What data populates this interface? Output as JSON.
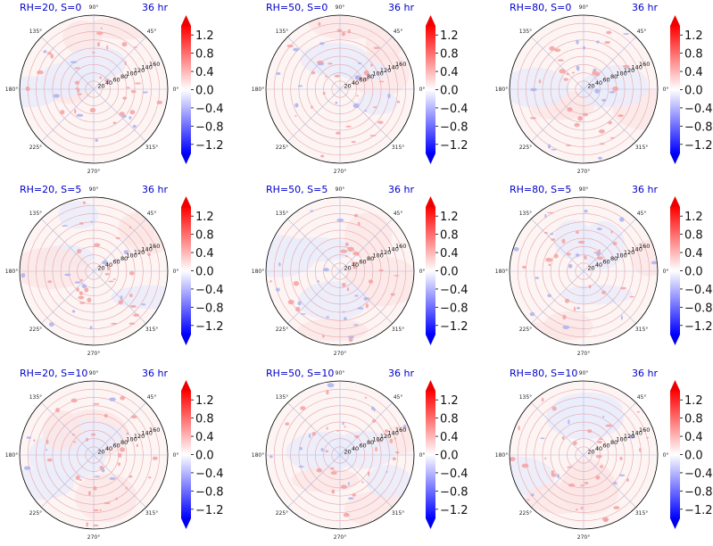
{
  "colors": {
    "title": "#0000cc",
    "negative": "#0000ff",
    "positive": "#ff0000",
    "neutral": "#ffffff",
    "circle": "#e8a6a6",
    "spoke": "#b8b8d8"
  },
  "chart_data": {
    "type": "polar-contour-grid",
    "colormap": "bwr",
    "angular_ticks": [
      "0°",
      "45°",
      "90°",
      "135°",
      "180°",
      "225°",
      "270°",
      "315°"
    ],
    "radial_ticks": [
      "20",
      "40",
      "60",
      "80",
      "100",
      "120",
      "140",
      "160"
    ],
    "radial_max": 180,
    "colorbar": {
      "ticks": [
        "1.2",
        "0.8",
        "0.4",
        "0.0",
        "−0.4",
        "−0.8",
        "−1.2"
      ],
      "vmin": -1.4,
      "vmax": 1.4,
      "extend": "both"
    },
    "panels": [
      {
        "title": "RH=20, S=0",
        "time_label": "36 hr"
      },
      {
        "title": "RH=50, S=0",
        "time_label": "36 hr"
      },
      {
        "title": "RH=80, S=0",
        "time_label": "36 hr"
      },
      {
        "title": "RH=20, S=5",
        "time_label": "36 hr"
      },
      {
        "title": "RH=50, S=5",
        "time_label": "36 hr"
      },
      {
        "title": "RH=80, S=5",
        "time_label": "36 hr"
      },
      {
        "title": "RH=20, S=10",
        "time_label": "36 hr"
      },
      {
        "title": "RH=50, S=10",
        "time_label": "36 hr"
      },
      {
        "title": "RH=80, S=10",
        "time_label": "36 hr"
      }
    ]
  }
}
